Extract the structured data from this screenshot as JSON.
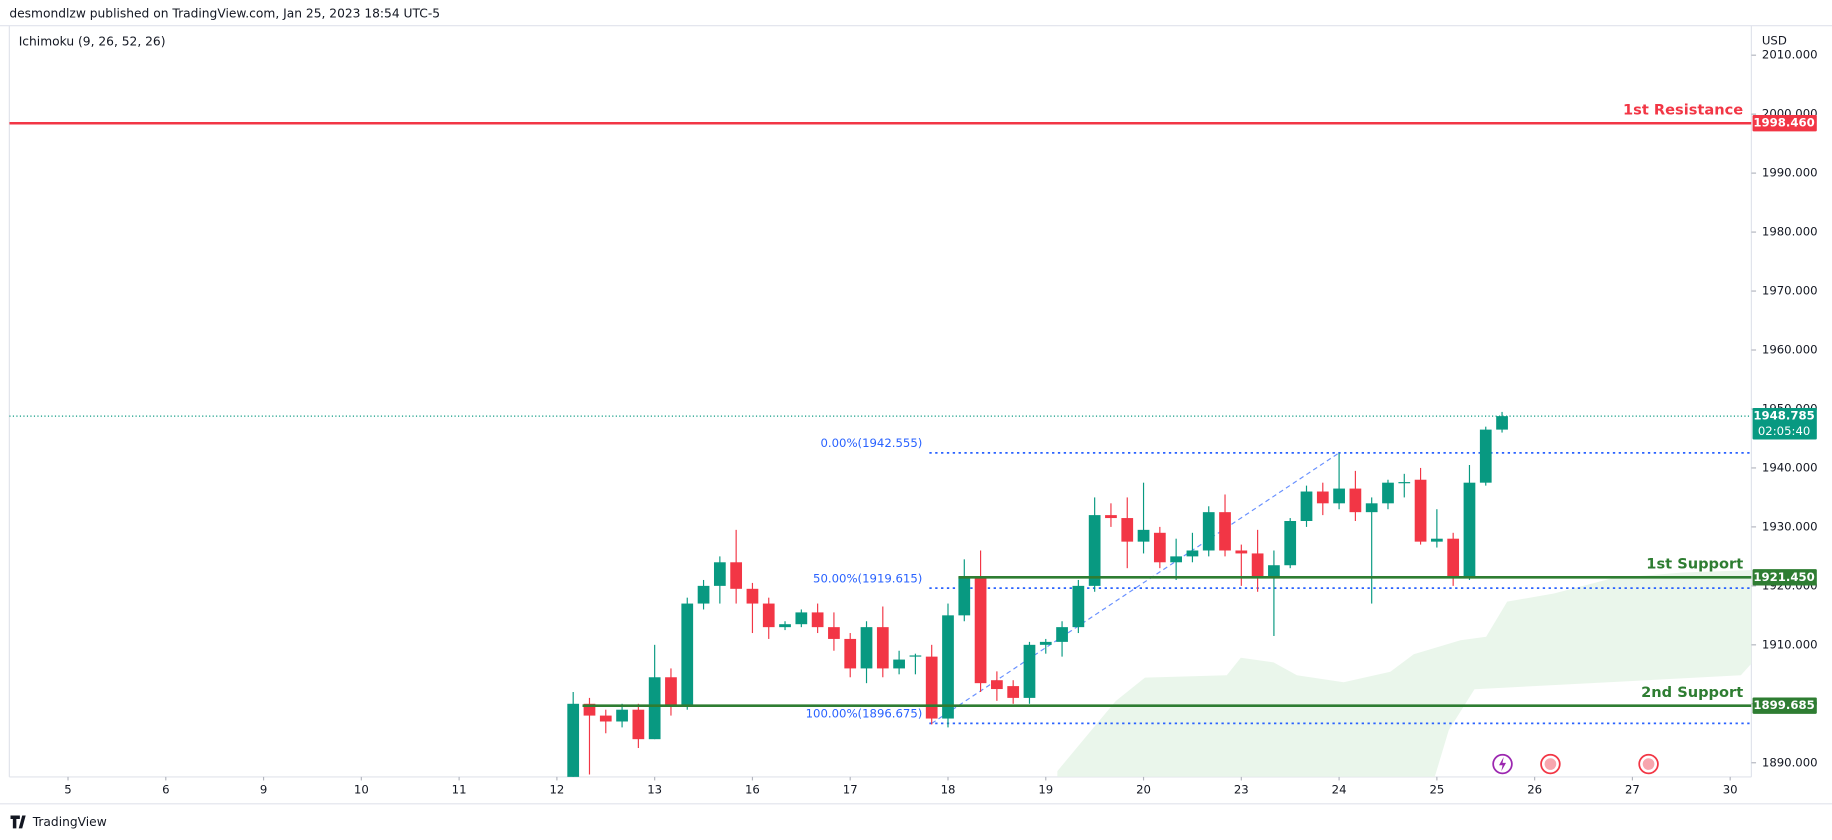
{
  "chart_data": {
    "type": "candlestick",
    "header": "desmondlzw published on TradingView.com, Jan 25, 2023 18:54 UTC-5",
    "indicator": "Ichimoku (9, 26, 52, 26)",
    "currency": "USD",
    "brand": "TradingView",
    "x": [
      0,
      1,
      2,
      3,
      4,
      5,
      6,
      7,
      8,
      9,
      10,
      11,
      12,
      13,
      14,
      15,
      16,
      17,
      18,
      19,
      20,
      21,
      22,
      23,
      24,
      25,
      26,
      27,
      28,
      29,
      30,
      31,
      32,
      33,
      34,
      35,
      36,
      37,
      38,
      39,
      40,
      41,
      42,
      43,
      44,
      45,
      46,
      47,
      48,
      49,
      50,
      51,
      52,
      53,
      54,
      55,
      56,
      57
    ],
    "open": [
      1887,
      1900,
      1898,
      1897,
      1899,
      1894,
      1904.5,
      1899.5,
      1917,
      1920,
      1924,
      1919.5,
      1917,
      1913,
      1913.5,
      1915.5,
      1913,
      1911,
      1906,
      1913,
      1906,
      1908,
      1908,
      1897.5,
      1915,
      1921.5,
      1904,
      1903,
      1901,
      1910,
      1910.5,
      1913,
      1920,
      1932,
      1931.5,
      1927.5,
      1929,
      1924,
      1925,
      1926,
      1932.5,
      1926,
      1925.5,
      1921.5,
      1923.5,
      1931,
      1936,
      1934,
      1936.5,
      1932.5,
      1934,
      1937.5,
      1938,
      1927.5,
      1928,
      1921.5,
      1937.5,
      1946.5
    ],
    "high": [
      1902,
      1901,
      1899,
      1900,
      1900,
      1910,
      1906,
      1918,
      1921,
      1925,
      1929.5,
      1920.5,
      1918,
      1914,
      1916,
      1917,
      1915.5,
      1912,
      1914,
      1916.5,
      1909,
      1908.5,
      1910,
      1917,
      1924.5,
      1926,
      1905.5,
      1904,
      1910.5,
      1911,
      1914,
      1921,
      1935,
      1934,
      1935,
      1937.5,
      1930,
      1928,
      1929,
      1933.5,
      1935.5,
      1927,
      1929.5,
      1926,
      1931.5,
      1937,
      1937.5,
      1942.5,
      1939.5,
      1935,
      1938,
      1939,
      1940,
      1933,
      1929,
      1940.5,
      1947,
      1949.5
    ],
    "low": [
      1886,
      1888,
      1895,
      1896,
      1892.5,
      1894,
      1898,
      1899,
      1916,
      1917,
      1917,
      1912,
      1911,
      1912.5,
      1913,
      1912,
      1909,
      1904.5,
      1903.5,
      1904.5,
      1905,
      1905,
      1896.5,
      1896,
      1914,
      1902,
      1900.5,
      1900,
      1900,
      1908.5,
      1908,
      1912,
      1919,
      1930,
      1923,
      1925.5,
      1923,
      1921,
      1924,
      1925,
      1925,
      1920,
      1919,
      1911.5,
      1923,
      1930,
      1932,
      1933,
      1931,
      1917,
      1933,
      1935,
      1927,
      1926.5,
      1920,
      1921,
      1937,
      1946
    ],
    "close": [
      1900,
      1898,
      1897,
      1899,
      1894,
      1904.5,
      1899.5,
      1917,
      1920,
      1924,
      1919.5,
      1917,
      1913,
      1913.5,
      1915.5,
      1913,
      1911,
      1906,
      1913,
      1906,
      1907.5,
      1908.2,
      1897.5,
      1915,
      1921.5,
      1903.5,
      1902.5,
      1901,
      1910,
      1910.5,
      1913,
      1920,
      1932,
      1931.5,
      1927.5,
      1929.5,
      1924,
      1925,
      1926,
      1932.5,
      1926,
      1925.5,
      1921.5,
      1923.5,
      1931,
      1936,
      1934,
      1936.5,
      1932.5,
      1934,
      1937.5,
      1937.6,
      1927.5,
      1928,
      1921.5,
      1937.5,
      1946.5,
      1948.785
    ],
    "up_color": "#089981",
    "down_color": "#f23645",
    "xlim": [
      -34.6,
      72.3
    ],
    "ylim": [
      1887.6,
      2015
    ],
    "xticks": [
      {
        "value": -31,
        "label": "5"
      },
      {
        "value": -25,
        "label": "6"
      },
      {
        "value": -19,
        "label": "9"
      },
      {
        "value": -13,
        "label": "10"
      },
      {
        "value": -7,
        "label": "11"
      },
      {
        "value": -1,
        "label": "12"
      },
      {
        "value": 5,
        "label": "13"
      },
      {
        "value": 11,
        "label": "16"
      },
      {
        "value": 17,
        "label": "17"
      },
      {
        "value": 23,
        "label": "18"
      },
      {
        "value": 29,
        "label": "19"
      },
      {
        "value": 35,
        "label": "20"
      },
      {
        "value": 41,
        "label": "23"
      },
      {
        "value": 47,
        "label": "24"
      },
      {
        "value": 53,
        "label": "25"
      },
      {
        "value": 59,
        "label": "26"
      },
      {
        "value": 65,
        "label": "27"
      },
      {
        "value": 71,
        "label": "30"
      }
    ],
    "yticks": [
      {
        "value": 1890,
        "label": "1890.000"
      },
      {
        "value": 1900,
        "label": "1900.000"
      },
      {
        "value": 1910,
        "label": "1910.000"
      },
      {
        "value": 1920,
        "label": "1920.000"
      },
      {
        "value": 1930,
        "label": "1930.000"
      },
      {
        "value": 1940,
        "label": "1940.000"
      },
      {
        "value": 1950,
        "label": "1950.000"
      },
      {
        "value": 1960,
        "label": "1960.000"
      },
      {
        "value": 1970,
        "label": "1970.000"
      },
      {
        "value": 1980,
        "label": "1980.000"
      },
      {
        "value": 1990,
        "label": "1990.000"
      },
      {
        "value": 2000,
        "label": "2000.000"
      },
      {
        "value": 2010,
        "label": "2010.000"
      }
    ],
    "levels": [
      {
        "name": "1st Resistance",
        "value": 1998.46,
        "label": "1998.460",
        "color": "#f23645"
      },
      {
        "name": "1st Support",
        "value": 1921.45,
        "label": "1921.450",
        "color": "#2e7d32"
      },
      {
        "name": "2nd Support",
        "value": 1899.685,
        "label": "1899.685",
        "color": "#2e7d32"
      }
    ],
    "fib": [
      {
        "value": 1942.555,
        "label": "0.00%(1942.555)"
      },
      {
        "value": 1919.615,
        "label": "50.00%(1919.615)"
      },
      {
        "value": 1896.675,
        "label": "100.00%(1896.675)"
      }
    ],
    "last_price": {
      "value": 1948.785,
      "label": "1948.785",
      "countdown": "02:05:40",
      "color": "#089981"
    }
  }
}
